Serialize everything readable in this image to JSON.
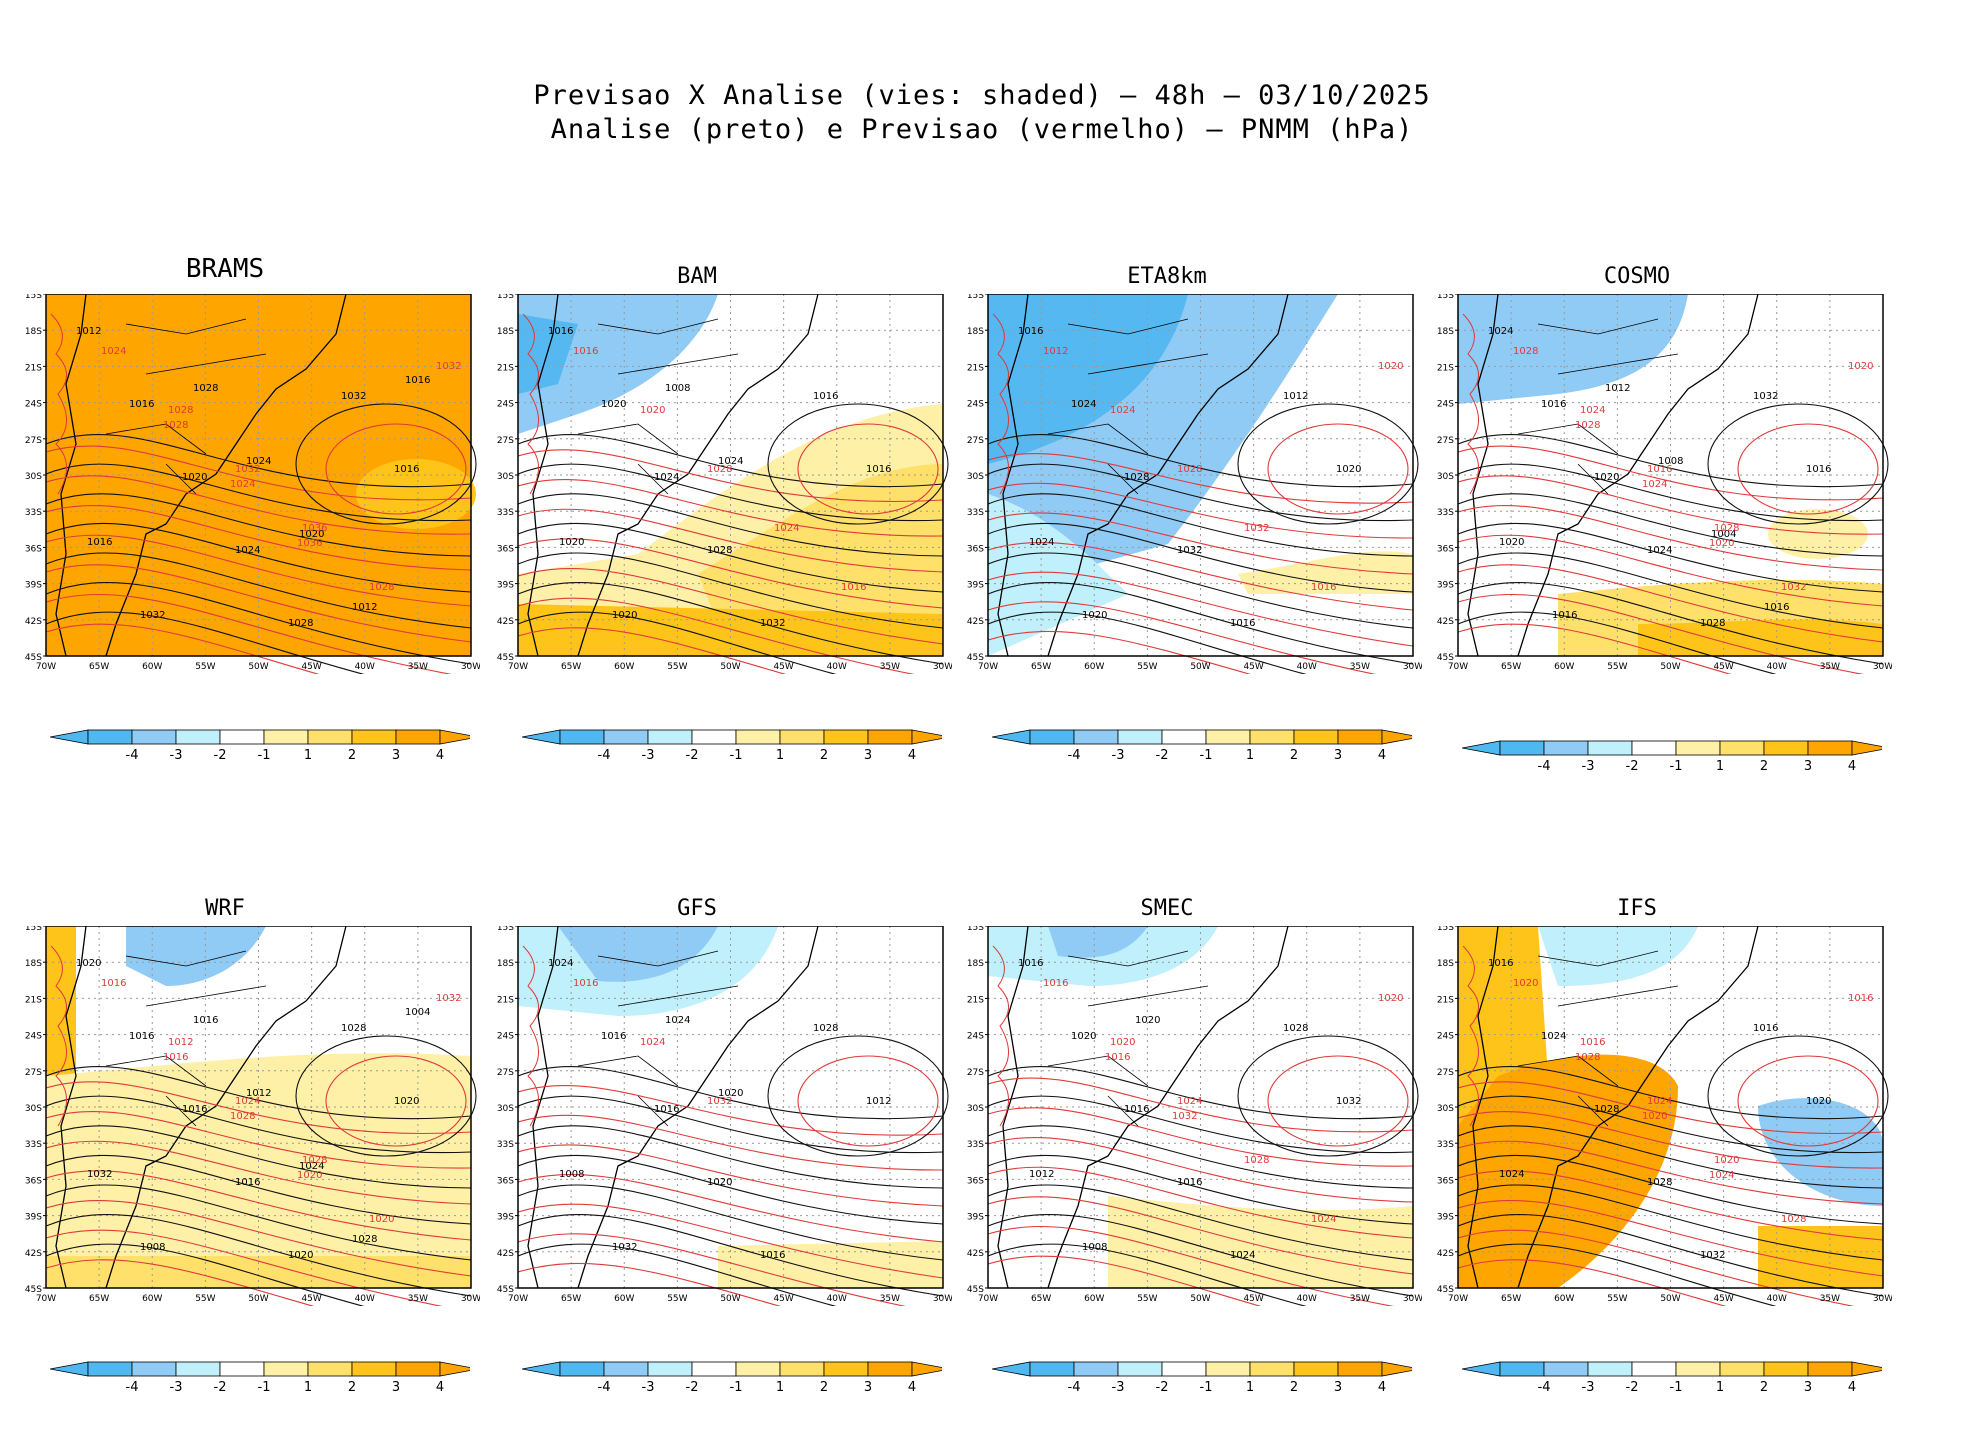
{
  "title": {
    "line1": "Previsao X Analise (vies: shaded) – 48h – 03/10/2025",
    "line2": "Analise (preto) e Previsao (vermelho) – PNMM (hPa)"
  },
  "axes": {
    "lat_labels": [
      "15S",
      "18S",
      "21S",
      "24S",
      "27S",
      "30S",
      "33S",
      "36S",
      "39S",
      "42S",
      "45S"
    ],
    "lon_labels": [
      "70W",
      "65W",
      "60W",
      "55W",
      "50W",
      "45W",
      "40W",
      "35W",
      "30W"
    ]
  },
  "colorbar": {
    "labels": [
      "-4",
      "-3",
      "-2",
      "-1",
      "1",
      "2",
      "3",
      "4"
    ],
    "colors": [
      "#4fb8f0",
      "#8fcbf4",
      "#bff0fb",
      "#ffffff",
      "#fff0a8",
      "#ffe06a",
      "#ffc41a",
      "#ffa500"
    ]
  },
  "colors": {
    "analysis_contour": "#111111",
    "forecast_contour": "#e03a3a",
    "warm_bias": "#ffa500",
    "cold_bias": "#55b8f0"
  },
  "panels": [
    {
      "model": "BRAMS",
      "bias": "strong-positive",
      "black_labels": [
        "1012",
        "1016",
        "1020",
        "1024",
        "1028",
        "1032",
        "1016",
        "1016",
        "1032",
        "1028",
        "1024",
        "1020",
        "1012",
        "1016"
      ],
      "red_labels": [
        "1024",
        "1028",
        "1032",
        "1036",
        "1028",
        "1032",
        "1028",
        "1024",
        "1036"
      ]
    },
    {
      "model": "BAM",
      "bias": "mixed-positive",
      "black_labels": [
        "1016",
        "1020",
        "1024",
        "1028",
        "1032",
        "1016",
        "1016",
        "1020",
        "1020",
        "1008",
        "1024"
      ],
      "red_labels": [
        "1016",
        "1020",
        "1028",
        "1024",
        "1016"
      ]
    },
    {
      "model": "ETA8km",
      "bias": "negative-north",
      "black_labels": [
        "1016",
        "1024",
        "1028",
        "1032",
        "1016",
        "1012",
        "1020",
        "1024",
        "1020"
      ],
      "red_labels": [
        "1012",
        "1024",
        "1028",
        "1032",
        "1016",
        "1020"
      ]
    },
    {
      "model": "COSMO",
      "bias": "mixed",
      "black_labels": [
        "1024",
        "1016",
        "1020",
        "1024",
        "1028",
        "1032",
        "1016",
        "1020",
        "1016",
        "1012",
        "1008",
        "1004",
        "1016"
      ],
      "red_labels": [
        "1028",
        "1024",
        "1016",
        "1028",
        "1032",
        "1020",
        "1028",
        "1024",
        "1020"
      ]
    },
    {
      "model": "WRF",
      "bias": "positive-south",
      "black_labels": [
        "1020",
        "1016",
        "1016",
        "1016",
        "1020",
        "1028",
        "1020",
        "1032",
        "1008",
        "1016",
        "1012",
        "1024",
        "1028",
        "1004"
      ],
      "red_labels": [
        "1016",
        "1012",
        "1024",
        "1028",
        "1020",
        "1032",
        "1016",
        "1028",
        "1020"
      ]
    },
    {
      "model": "GFS",
      "bias": "slight-negative",
      "black_labels": [
        "1024",
        "1016",
        "1016",
        "1020",
        "1016",
        "1028",
        "1012",
        "1008",
        "1032",
        "1024",
        "1020"
      ],
      "red_labels": [
        "1016",
        "1024",
        "1032"
      ]
    },
    {
      "model": "SMEC",
      "bias": "slight-positive-south",
      "black_labels": [
        "1016",
        "1020",
        "1016",
        "1016",
        "1024",
        "1028",
        "1032",
        "1012",
        "1008",
        "1020"
      ],
      "red_labels": [
        "1016",
        "1020",
        "1024",
        "1028",
        "1024",
        "1020",
        "1016",
        "1032"
      ]
    },
    {
      "model": "IFS",
      "bias": "strong-positive-center",
      "black_labels": [
        "1016",
        "1024",
        "1028",
        "1028",
        "1032",
        "1016",
        "1020",
        "1024"
      ],
      "red_labels": [
        "1020",
        "1016",
        "1024",
        "1020",
        "1028",
        "1016",
        "1028",
        "1020",
        "1024"
      ]
    }
  ]
}
